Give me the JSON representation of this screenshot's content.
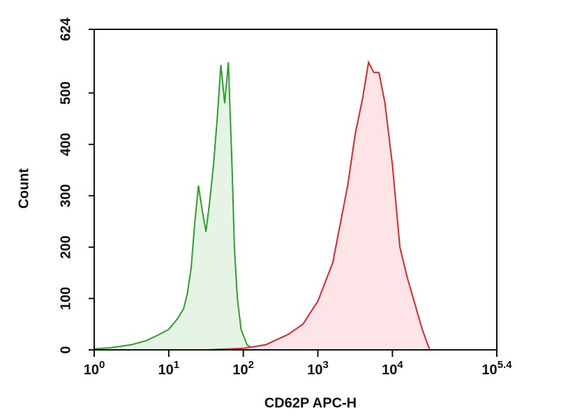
{
  "chart_data": {
    "type": "area",
    "xlabel": "CD62P APC-H",
    "ylabel": "Count",
    "xscale": "log",
    "xlim": [
      1,
      251188.6
    ],
    "ylim": [
      0,
      624
    ],
    "xticks": [
      {
        "value": 1,
        "label": "10^0"
      },
      {
        "value": 10,
        "label": "10^1"
      },
      {
        "value": 100,
        "label": "10^2"
      },
      {
        "value": 1000,
        "label": "10^3"
      },
      {
        "value": 10000,
        "label": "10^4"
      },
      {
        "value": 251188.6,
        "label": "10^5.4"
      }
    ],
    "yticks": [
      0,
      100,
      200,
      300,
      400,
      500,
      624
    ],
    "series": [
      {
        "color": "#2ca02c",
        "fill": "#e6f4e6",
        "x": [
          1,
          1.6,
          3.16,
          5,
          7,
          10,
          13,
          15.8,
          17.8,
          20,
          22.4,
          25,
          28.2,
          31.6,
          35.5,
          39.8,
          44.7,
          50,
          56.2,
          63.1,
          70.8,
          75.9,
          83.2,
          93.3,
          112,
          132,
          158
        ],
        "values": [
          2,
          4,
          10,
          18,
          28,
          40,
          60,
          80,
          110,
          160,
          250,
          320,
          270,
          230,
          290,
          360,
          450,
          555,
          480,
          560,
          350,
          200,
          100,
          40,
          10,
          2,
          0
        ]
      },
      {
        "color": "#e0242a",
        "fill": "#fde4e6",
        "x": [
          31.6,
          100,
          200,
          398,
          631,
          1000,
          1585,
          2512,
          3162,
          3981,
          4786,
          5623,
          6607,
          7943,
          10000,
          12589,
          15849,
          19953,
          25119,
          31623
        ],
        "values": [
          0,
          3,
          10,
          30,
          50,
          95,
          170,
          320,
          420,
          490,
          560,
          540,
          540,
          480,
          360,
          200,
          140,
          90,
          40,
          0
        ]
      }
    ]
  }
}
